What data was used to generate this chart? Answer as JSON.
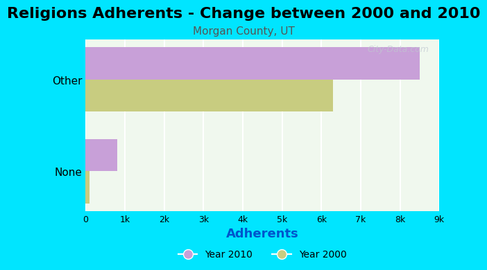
{
  "title": "Religions Adherents - Change between 2000 and 2010",
  "subtitle": "Morgan County, UT",
  "categories": [
    "None",
    "Other"
  ],
  "year2010_values": [
    800,
    8500
  ],
  "year2000_values": [
    100,
    6300
  ],
  "color_2010": "#c8a0d8",
  "color_2000": "#c8cc80",
  "bg_color": "#00e5ff",
  "chart_bg": "#f0f8ee",
  "xlabel": "Adherents",
  "xlim": [
    0,
    9000
  ],
  "xticks": [
    0,
    1000,
    2000,
    3000,
    4000,
    5000,
    6000,
    7000,
    8000,
    9000
  ],
  "xtick_labels": [
    "0",
    "1k",
    "2k",
    "3k",
    "4k",
    "5k",
    "6k",
    "7k",
    "8k",
    "9k"
  ],
  "watermark": "City-Data.com",
  "title_fontsize": 16,
  "subtitle_fontsize": 11,
  "xlabel_fontsize": 13,
  "xlabel_color": "#0055cc",
  "legend_labels": [
    "Year 2010",
    "Year 2000"
  ]
}
